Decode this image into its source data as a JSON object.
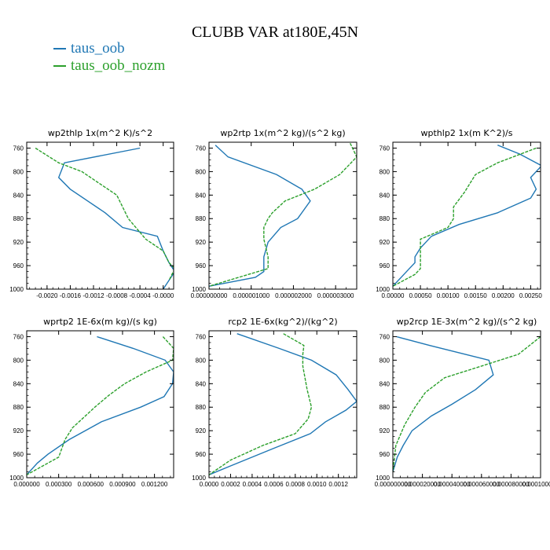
{
  "title": "CLUBB VAR at180E,45N",
  "legend": [
    {
      "label": "taus_oob",
      "color": "#1f77b4"
    },
    {
      "label": "taus_oob_nozm",
      "color": "#2ca02c"
    }
  ],
  "chart_data": [
    {
      "type": "line",
      "title": "wp2thlp   1x(m^2 K)/s^2",
      "ylim": [
        1000,
        750
      ],
      "yticks": [
        "760",
        "800",
        "840",
        "880",
        "920",
        "960",
        "1000"
      ],
      "xlim": [
        -0.00235,
        0.00018
      ],
      "xticks": [
        "-0.0020",
        "-0.0016",
        "-0.0012",
        "-0.0008",
        "-0.0004",
        "-0.0000"
      ],
      "xtick_values": [
        -0.002,
        -0.0016,
        -0.0012,
        -0.0008,
        -0.0004,
        0.0
      ],
      "series": [
        {
          "color": "#1f77b4",
          "x": [
            -0.0004,
            -0.0017,
            -0.0018,
            -0.0016,
            -0.0013,
            -0.001,
            -0.0007,
            -0.0001,
            0.0,
            0.0001,
            0.0002,
            0.0001,
            0.0
          ],
          "y": [
            760,
            785,
            810,
            830,
            850,
            870,
            895,
            910,
            935,
            955,
            970,
            985,
            1000
          ]
        },
        {
          "color": "#2ca02c",
          "x": [
            -0.0022,
            -0.0018,
            -0.0014,
            -0.0011,
            -0.0008,
            -0.0007,
            -0.0006,
            -0.0003,
            0.0,
            0.0001,
            0.0002,
            0.0001
          ],
          "y": [
            760,
            785,
            800,
            820,
            840,
            860,
            880,
            915,
            935,
            955,
            965,
            985
          ]
        }
      ]
    },
    {
      "type": "line",
      "title": "wp2rtp   1x(m^2 kg)/(s^2 kg)",
      "ylim": [
        1000,
        750
      ],
      "yticks": [
        "760",
        "800",
        "840",
        "880",
        "920",
        "960",
        "1000"
      ],
      "xlim": [
        0.0,
        3.5e-06
      ],
      "xticks": [
        "0.000000000",
        "0.000001000",
        "0.000002000",
        "0.000003000"
      ],
      "xtick_values": [
        0.0,
        1e-06,
        2e-06,
        3e-06
      ],
      "series": [
        {
          "color": "#1f77b4",
          "x": [
            1.5e-07,
            4.5e-07,
            1.6e-06,
            2.2e-06,
            2.4e-06,
            2.1e-06,
            1.7e-06,
            1.4e-06,
            1.3e-06,
            1.3e-06,
            1.1e-06,
            0.0
          ],
          "y": [
            755,
            775,
            805,
            830,
            850,
            880,
            895,
            920,
            945,
            970,
            980,
            995
          ]
        },
        {
          "color": "#2ca02c",
          "x": [
            3.3e-06,
            3.5e-06,
            3.1e-06,
            2.5e-06,
            1.8e-06,
            1.5e-06,
            1.4e-06,
            1.3e-06,
            1.3e-06,
            1.4e-06,
            1.4e-06,
            0.0
          ],
          "y": [
            745,
            775,
            805,
            830,
            850,
            870,
            880,
            895,
            915,
            945,
            965,
            995
          ]
        }
      ]
    },
    {
      "type": "line",
      "title": "wpthlp2   1x(m K^2)/s",
      "ylim": [
        1000,
        750
      ],
      "yticks": [
        "760",
        "800",
        "840",
        "880",
        "920",
        "960",
        "1000"
      ],
      "xlim": [
        0.0,
        0.00268
      ],
      "xticks": [
        "0.00000",
        "0.00050",
        "0.00100",
        "0.00150",
        "0.00200",
        "0.00250"
      ],
      "xtick_values": [
        0.0,
        0.0005,
        0.001,
        0.0015,
        0.002,
        0.0025
      ],
      "series": [
        {
          "color": "#1f77b4",
          "x": [
            0.0019,
            0.0023,
            0.0027,
            0.0025,
            0.0026,
            0.0025,
            0.0019,
            0.0012,
            0.0007,
            0.0006,
            0.0005,
            0.0004,
            0.0004,
            0.0003,
            0.0
          ],
          "y": [
            755,
            770,
            790,
            810,
            830,
            845,
            870,
            890,
            910,
            920,
            930,
            945,
            955,
            965,
            995
          ]
        },
        {
          "color": "#2ca02c",
          "x": [
            0.0026,
            0.0019,
            0.0015,
            0.0013,
            0.0011,
            0.0011,
            0.001,
            0.0005,
            0.0005,
            0.0005,
            0.0005,
            0.0004,
            0.0
          ],
          "y": [
            760,
            785,
            805,
            835,
            860,
            880,
            895,
            915,
            930,
            945,
            965,
            975,
            995
          ]
        }
      ]
    },
    {
      "type": "line",
      "title": "wprtp2   1E-6x(m kg)/(s kg)",
      "ylim": [
        1000,
        750
      ],
      "yticks": [
        "760",
        "800",
        "840",
        "880",
        "920",
        "960",
        "1000"
      ],
      "xlim": [
        0.0,
        0.00138
      ],
      "xticks": [
        "0.000000",
        "0.000300",
        "0.000600",
        "0.000900",
        "0.001200"
      ],
      "xtick_values": [
        0.0,
        0.0003,
        0.0006,
        0.0009,
        0.0012
      ],
      "series": [
        {
          "color": "#1f77b4",
          "x": [
            0.00066,
            0.001,
            0.0013,
            0.00138,
            0.00137,
            0.00129,
            0.00107,
            0.0007,
            0.0004,
            0.0002,
            0.0001,
            0.0
          ],
          "y": [
            760,
            780,
            800,
            820,
            840,
            862,
            880,
            905,
            935,
            960,
            975,
            995
          ]
        },
        {
          "color": "#2ca02c",
          "x": [
            0.00128,
            0.00138,
            0.00137,
            0.00112,
            0.00092,
            0.00077,
            0.00064,
            0.00052,
            0.00043,
            0.00036,
            0.0003,
            0.0
          ],
          "y": [
            760,
            780,
            800,
            820,
            840,
            860,
            880,
            900,
            915,
            935,
            965,
            995
          ]
        }
      ]
    },
    {
      "type": "line",
      "title": "rcp2   1E-6x(kg^2)/(kg^2)",
      "ylim": [
        1000,
        750
      ],
      "yticks": [
        "760",
        "800",
        "840",
        "880",
        "920",
        "960",
        "1000"
      ],
      "xlim": [
        0.0,
        0.00137
      ],
      "xticks": [
        "0.0000",
        "0.0002",
        "0.0004",
        "0.0006",
        "0.0008",
        "0.0010",
        "0.0012"
      ],
      "xtick_values": [
        0.0,
        0.0002,
        0.0004,
        0.0006,
        0.0008,
        0.001,
        0.0012
      ],
      "series": [
        {
          "color": "#1f77b4",
          "x": [
            0.00026,
            0.00065,
            0.00095,
            0.00118,
            0.00129,
            0.00137,
            0.00127,
            0.00108,
            0.00094,
            0.0006,
            0.0002,
            0.0
          ],
          "y": [
            755,
            780,
            800,
            825,
            850,
            870,
            885,
            905,
            925,
            950,
            980,
            995
          ]
        },
        {
          "color": "#2ca02c",
          "x": [
            0.00069,
            0.00088,
            0.00087,
            0.00087,
            0.00091,
            0.00095,
            0.00092,
            0.0008,
            0.0005,
            0.0002,
            0.0
          ],
          "y": [
            755,
            775,
            790,
            810,
            850,
            880,
            900,
            925,
            945,
            970,
            995
          ]
        }
      ]
    },
    {
      "type": "line",
      "title": "wp2rcp   1E-3x(m^2 kg)/(s^2 kg)",
      "ylim": [
        1000,
        750
      ],
      "yticks": [
        "760",
        "800",
        "840",
        "880",
        "920",
        "960",
        "1000"
      ],
      "xlim": [
        0.0,
        0.0001
      ],
      "xticks": [
        "0.000000000",
        "0.000020000",
        "0.000040000",
        "0.000060000",
        "0.000080000",
        "0.000100000"
      ],
      "xtick_values": [
        0.0,
        2e-05,
        4e-05,
        6e-05,
        8e-05,
        0.0001
      ],
      "series": [
        {
          "color": "#1f77b4",
          "x": [
            2.5e-06,
            2.5e-05,
            6.5e-05,
            6.8e-05,
            5.6e-05,
            4e-05,
            2.6e-05,
            1.3e-05,
            7e-06,
            3e-06,
            0.0
          ],
          "y": [
            760,
            775,
            800,
            825,
            850,
            875,
            895,
            920,
            945,
            965,
            990
          ]
        },
        {
          "color": "#2ca02c",
          "x": [
            0.0001,
            8.5e-05,
            6e-05,
            3.5e-05,
            2.2e-05,
            1.5e-05,
            8e-06,
            2e-06,
            0.0
          ],
          "y": [
            760,
            790,
            810,
            830,
            855,
            880,
            910,
            945,
            990
          ]
        }
      ]
    }
  ]
}
